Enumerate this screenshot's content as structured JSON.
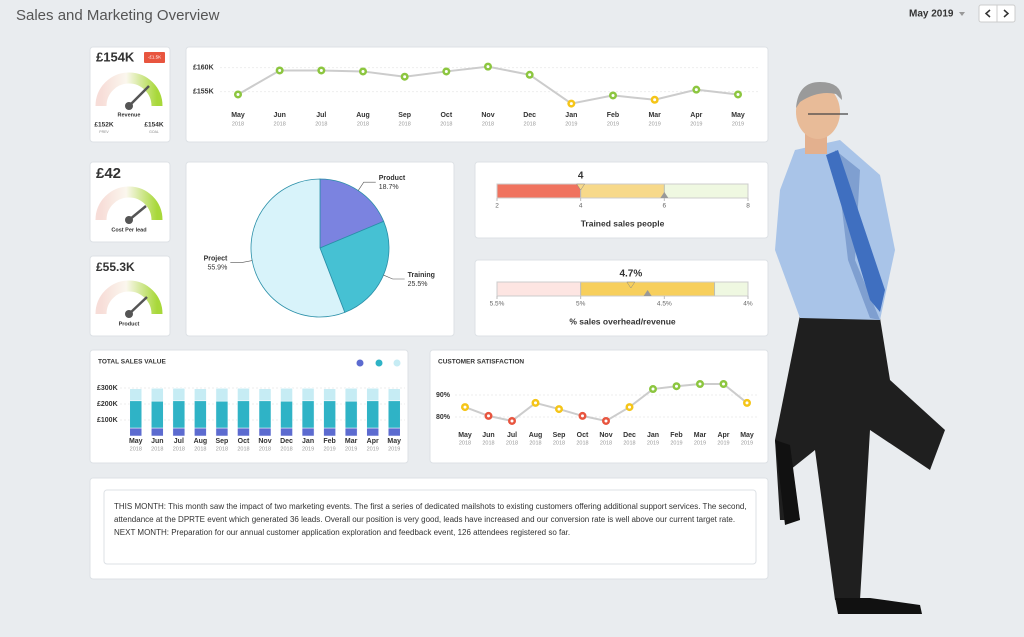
{
  "header": {
    "title": "Sales and Marketing Overview",
    "period": "May 2019"
  },
  "kpis": [
    {
      "value": "£154K",
      "badge": "-£1.5K",
      "label": "Revenue",
      "left_value": "£152K",
      "left_caption": "PREV",
      "right_value": "£154K",
      "right_caption": "GOAL"
    },
    {
      "value": "£42",
      "label": "Cost Per lead"
    },
    {
      "value": "£55.3K",
      "label": "Product"
    }
  ],
  "chart_data": [
    {
      "type": "line",
      "categories": [
        "May",
        "Jun",
        "Jul",
        "Aug",
        "Sep",
        "Oct",
        "Nov",
        "Dec",
        "Jan",
        "Feb",
        "Mar",
        "Apr",
        "May"
      ],
      "category_years": [
        "2018",
        "2018",
        "2018",
        "2018",
        "2018",
        "2018",
        "2018",
        "2018",
        "2019",
        "2019",
        "2019",
        "2019",
        "2019"
      ],
      "values": [
        154.4,
        159.4,
        159.4,
        159.2,
        158.1,
        159.2,
        160.2,
        158.5,
        152.5,
        154.2,
        153.3,
        155.4,
        154.4
      ],
      "point_colors": [
        "#8cc63f",
        "#8cc63f",
        "#8cc63f",
        "#8cc63f",
        "#8cc63f",
        "#8cc63f",
        "#8cc63f",
        "#8cc63f",
        "#f5c518",
        "#8cc63f",
        "#f5c518",
        "#8cc63f",
        "#8cc63f"
      ],
      "line_color": "#cccccc",
      "ylim": [
        152,
        162
      ],
      "yticks": [
        {
          "value": 155,
          "label": "£155K"
        },
        {
          "value": 160,
          "label": "£160K"
        }
      ],
      "grid": true
    },
    {
      "type": "pie",
      "categories": [
        "Product",
        "Training",
        "Project"
      ],
      "values": [
        18.7,
        25.5,
        55.9
      ],
      "value_labels": [
        "18.7%",
        "25.5%",
        "55.9%"
      ],
      "colors": [
        "#7b83e0",
        "#46c1d3",
        "#d8f3fa"
      ]
    },
    {
      "type": "bullet",
      "title": "Trained sales people",
      "values": [
        4
      ],
      "target": 6,
      "xlim": [
        2,
        8
      ],
      "xticks": [
        2,
        4,
        6,
        8
      ],
      "bands": [
        {
          "from": 2,
          "to": 4,
          "color": "#f0735f"
        },
        {
          "from": 4,
          "to": 6,
          "color": "#f7d98a"
        },
        {
          "from": 6,
          "to": 8,
          "color": "#c9e89a"
        }
      ]
    },
    {
      "type": "bullet",
      "title": "% sales overhead/revenue",
      "values": [
        4.7
      ],
      "value_labels": [
        "4.7%"
      ],
      "target": 4.6,
      "xlim": [
        5.5,
        4
      ],
      "xticks": [
        {
          "value": 5.5,
          "label": "5.5%"
        },
        {
          "value": 5,
          "label": "5%"
        },
        {
          "value": 4.5,
          "label": "4.5%"
        },
        {
          "value": 4,
          "label": "4%"
        }
      ],
      "bands": [
        {
          "from": 5.5,
          "to": 5,
          "color": "#f7a9a0"
        },
        {
          "from": 5,
          "to": 4.2,
          "color": "#f7cf5c"
        },
        {
          "from": 4.2,
          "to": 4,
          "color": "#c9e89a"
        }
      ]
    },
    {
      "type": "bar",
      "stacked": true,
      "title": "TOTAL SALES VALUE",
      "categories": [
        "May",
        "Jun",
        "Jul",
        "Aug",
        "Sep",
        "Oct",
        "Nov",
        "Dec",
        "Jan",
        "Feb",
        "Mar",
        "Apr",
        "May"
      ],
      "category_years": [
        "2018",
        "2018",
        "2018",
        "2018",
        "2018",
        "2018",
        "2018",
        "2018",
        "2019",
        "2019",
        "2019",
        "2019",
        "2019"
      ],
      "series": [
        {
          "color": "#5c6bd0",
          "values": [
            50,
            50,
            50,
            50,
            50,
            50,
            50,
            50,
            50,
            50,
            50,
            50,
            50
          ]
        },
        {
          "color": "#2fb3c6",
          "values": [
            170,
            168,
            170,
            170,
            168,
            170,
            170,
            168,
            170,
            170,
            168,
            170,
            170
          ]
        },
        {
          "color": "#c6ecf4",
          "values": [
            75,
            80,
            78,
            75,
            80,
            78,
            75,
            80,
            78,
            75,
            80,
            78,
            75
          ]
        }
      ],
      "ylim": [
        0,
        320
      ],
      "yticks": [
        {
          "value": 100,
          "label": "£100K"
        },
        {
          "value": 200,
          "label": "£200K"
        },
        {
          "value": 300,
          "label": "£300K"
        }
      ],
      "grid": true
    },
    {
      "type": "line",
      "title": "CUSTOMER SATISFACTION",
      "categories": [
        "May",
        "Jun",
        "Jul",
        "Aug",
        "Sep",
        "Oct",
        "Nov",
        "Dec",
        "Jan",
        "Feb",
        "Mar",
        "Apr",
        "May"
      ],
      "category_years": [
        "2018",
        "2018",
        "2018",
        "2018",
        "2018",
        "2018",
        "2018",
        "2018",
        "2019",
        "2019",
        "2019",
        "2019",
        "2019"
      ],
      "values": [
        84.5,
        80.5,
        78.2,
        86.4,
        83.6,
        80.5,
        78.2,
        84.5,
        92.7,
        94,
        95,
        95,
        86.4
      ],
      "point_colors": [
        "#f5c518",
        "#e8553f",
        "#e8553f",
        "#f5c518",
        "#f5c518",
        "#e8553f",
        "#e8553f",
        "#f5c518",
        "#8cc63f",
        "#8cc63f",
        "#8cc63f",
        "#8cc63f",
        "#f5c518"
      ],
      "line_color": "#cccccc",
      "ylim": [
        76,
        98
      ],
      "yticks": [
        {
          "value": 80,
          "label": "80%"
        },
        {
          "value": 90,
          "label": "90%"
        }
      ],
      "grid": true
    }
  ],
  "notes": [
    "THIS MONTH: This month saw the impact of two marketing events. The first a series of dedicated mailshots to existing customers offering additional support services. The second, attendance at the DPRTE event which generated 36 leads. Overall our position is very good, leads have increased and our conversion rate is well above our current target rate.",
    "NEXT MONTH: Preparation for our annual customer application exploration and feedback event, 126 attendees registered so far."
  ]
}
